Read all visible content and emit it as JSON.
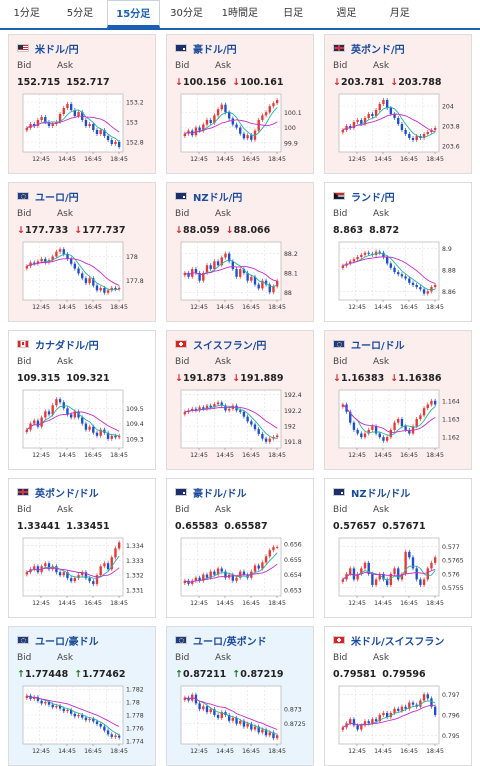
{
  "tabs": [
    {
      "label": "1分足",
      "active": false
    },
    {
      "label": "5分足",
      "active": false
    },
    {
      "label": "15分足",
      "active": true
    },
    {
      "label": "30分足",
      "active": false
    },
    {
      "label": "1時間足",
      "active": false
    },
    {
      "label": "日足",
      "active": false
    },
    {
      "label": "週足",
      "active": false
    },
    {
      "label": "月足",
      "active": false
    }
  ],
  "labels": {
    "bid": "Bid",
    "ask": "Ask"
  },
  "colors": {
    "up_candle": "#e53935",
    "down_candle": "#1e4fc9",
    "ma_short": "#2ab0a0",
    "ma_long": "#c430c8",
    "accent": "#1a5fb4",
    "down_card": "#fdeeee",
    "up_card": "#eaf4fc"
  },
  "cards": [
    {
      "pair": "米ドル/円",
      "flag": "us-flag-icon",
      "flag_code": "us",
      "trend": "down",
      "bid": "152.715",
      "ask": "152.717",
      "arrow": "",
      "chart_data": {
        "type": "candlestick",
        "x_labels": [
          "12:45",
          "14:45",
          "16:45",
          "18:45"
        ],
        "y_ticks": [
          "153.2",
          "153",
          "152.8"
        ],
        "ylim": [
          152.7,
          153.28
        ],
        "close": [
          152.94,
          152.98,
          152.96,
          153.02,
          153.05,
          153.0,
          152.96,
          152.98,
          153.0,
          153.08,
          153.14,
          153.18,
          153.12,
          153.06,
          153.1,
          153.02,
          152.96,
          152.98,
          152.92,
          152.88,
          152.92,
          152.86,
          152.82,
          152.78,
          152.8,
          152.75
        ]
      }
    },
    {
      "pair": "豪ドル/円",
      "flag": "au-flag-icon",
      "flag_code": "au",
      "trend": "down",
      "bid": "100.156",
      "ask": "100.161",
      "arrow": "↓",
      "chart_data": {
        "type": "candlestick",
        "x_labels": [
          "12:45",
          "14:45",
          "16:45",
          "18:45"
        ],
        "y_ticks": [
          "100.1",
          "100",
          "99.9"
        ],
        "ylim": [
          99.84,
          100.22
        ],
        "close": [
          99.96,
          99.98,
          99.95,
          100.0,
          99.98,
          100.02,
          100.05,
          100.03,
          100.08,
          100.12,
          100.15,
          100.1,
          100.06,
          100.02,
          100.0,
          99.96,
          99.93,
          99.95,
          99.92,
          99.98,
          100.05,
          100.08,
          100.1,
          100.14,
          100.16,
          100.18
        ]
      }
    },
    {
      "pair": "英ポンド/円",
      "flag": "uk-flag-icon",
      "flag_code": "uk",
      "trend": "down",
      "bid": "203.781",
      "ask": "203.788",
      "arrow": "↓",
      "chart_data": {
        "type": "candlestick",
        "x_labels": [
          "12:45",
          "14:45",
          "16:45",
          "18:45"
        ],
        "y_ticks": [
          "204",
          "203.8",
          "203.6"
        ],
        "ylim": [
          203.54,
          204.12
        ],
        "close": [
          203.76,
          203.8,
          203.78,
          203.84,
          203.86,
          203.82,
          203.88,
          203.92,
          203.9,
          203.96,
          204.02,
          204.06,
          203.98,
          203.92,
          203.88,
          203.82,
          203.76,
          203.72,
          203.68,
          203.66,
          203.7,
          203.68,
          203.72,
          203.74,
          203.76,
          203.78
        ]
      }
    },
    {
      "pair": "ユーロ/円",
      "flag": "eu-flag-icon",
      "flag_code": "eu",
      "trend": "down",
      "bid": "177.733",
      "ask": "177.737",
      "arrow": "↓",
      "chart_data": {
        "type": "candlestick",
        "x_labels": [
          "12:45",
          "14:45",
          "16:45",
          "18:45"
        ],
        "y_ticks": [
          "178",
          "177.8"
        ],
        "ylim": [
          177.64,
          178.12
        ],
        "close": [
          177.92,
          177.95,
          177.94,
          177.96,
          177.98,
          177.95,
          177.97,
          178.0,
          178.04,
          178.06,
          178.02,
          177.98,
          177.94,
          177.9,
          177.86,
          177.82,
          177.78,
          177.82,
          177.76,
          177.72,
          177.74,
          177.7,
          177.72,
          177.74,
          177.73,
          177.74
        ]
      }
    },
    {
      "pair": "NZドル/円",
      "flag": "nz-flag-icon",
      "flag_code": "nz",
      "trend": "down",
      "bid": "88.059",
      "ask": "88.066",
      "arrow": "↓",
      "chart_data": {
        "type": "candlestick",
        "x_labels": [
          "12:45",
          "14:45",
          "16:45",
          "18:45"
        ],
        "y_ticks": [
          "88.2",
          "88.1",
          "88"
        ],
        "ylim": [
          87.96,
          88.26
        ],
        "close": [
          88.1,
          88.08,
          88.12,
          88.1,
          88.06,
          88.1,
          88.14,
          88.12,
          88.16,
          88.14,
          88.18,
          88.2,
          88.16,
          88.12,
          88.08,
          88.12,
          88.1,
          88.06,
          88.08,
          88.04,
          88.02,
          88.06,
          88.04,
          88.0,
          88.03,
          88.06
        ]
      }
    },
    {
      "pair": "ランド/円",
      "flag": "za-flag-icon",
      "flag_code": "za",
      "trend": "neutral",
      "bid": "8.863",
      "ask": "8.872",
      "arrow": "",
      "chart_data": {
        "type": "candlestick",
        "x_labels": [
          "12:45",
          "14:45",
          "16:45",
          "18:45"
        ],
        "y_ticks": [
          "8.9",
          "8.88",
          "8.86"
        ],
        "ylim": [
          8.852,
          8.906
        ],
        "close": [
          8.884,
          8.886,
          8.888,
          8.89,
          8.892,
          8.894,
          8.896,
          8.895,
          8.894,
          8.897,
          8.896,
          8.892,
          8.886,
          8.882,
          8.878,
          8.876,
          8.874,
          8.872,
          8.868,
          8.866,
          8.864,
          8.862,
          8.858,
          8.86,
          8.864,
          8.866
        ]
      }
    },
    {
      "pair": "カナダドル/円",
      "flag": "ca-flag-icon",
      "flag_code": "ca",
      "trend": "neutral",
      "bid": "109.315",
      "ask": "109.321",
      "arrow": "",
      "chart_data": {
        "type": "candlestick",
        "x_labels": [
          "12:45",
          "14:45",
          "16:45",
          "18:45"
        ],
        "y_ticks": [
          "109.5",
          "109.4",
          "109.3"
        ],
        "ylim": [
          109.24,
          109.62
        ],
        "close": [
          109.36,
          109.4,
          109.42,
          109.38,
          109.44,
          109.48,
          109.46,
          109.52,
          109.56,
          109.54,
          109.5,
          109.46,
          109.44,
          109.48,
          109.44,
          109.4,
          109.36,
          109.38,
          109.34,
          109.32,
          109.36,
          109.34,
          109.3,
          109.32,
          109.31,
          109.32
        ]
      }
    },
    {
      "pair": "スイスフラン/円",
      "flag": "ch-flag-icon",
      "flag_code": "ch",
      "trend": "down",
      "bid": "191.873",
      "ask": "191.889",
      "arrow": "↓",
      "chart_data": {
        "type": "candlestick",
        "x_labels": [
          "12:45",
          "14:45",
          "16:45",
          "18:45"
        ],
        "y_ticks": [
          "192.4",
          "192.2",
          "192",
          "191.8"
        ],
        "ylim": [
          191.72,
          192.46
        ],
        "close": [
          192.18,
          192.2,
          192.22,
          192.2,
          192.24,
          192.22,
          192.26,
          192.24,
          192.28,
          192.3,
          192.26,
          192.2,
          192.22,
          192.26,
          192.2,
          192.18,
          192.12,
          192.06,
          192.02,
          191.96,
          191.9,
          191.84,
          191.8,
          191.84,
          191.86,
          191.88
        ]
      }
    },
    {
      "pair": "ユーロ/ドル",
      "flag": "eu-flag-icon",
      "flag_code": "eu",
      "trend": "down",
      "bid": "1.16383",
      "ask": "1.16386",
      "arrow": "↓",
      "chart_data": {
        "type": "candlestick",
        "x_labels": [
          "12:45",
          "14:45",
          "16:45",
          "18:45"
        ],
        "y_ticks": [
          "1.164",
          "1.163",
          "1.162"
        ],
        "ylim": [
          1.1614,
          1.1646
        ],
        "close": [
          1.1638,
          1.1634,
          1.1628,
          1.1624,
          1.1622,
          1.162,
          1.1622,
          1.1624,
          1.1626,
          1.1622,
          1.162,
          1.1618,
          1.162,
          1.1624,
          1.1628,
          1.163,
          1.1626,
          1.1624,
          1.1622,
          1.1626,
          1.163,
          1.1632,
          1.1636,
          1.1638,
          1.164,
          1.1638
        ]
      }
    },
    {
      "pair": "英ポンド/ドル",
      "flag": "uk-flag-icon",
      "flag_code": "uk",
      "trend": "neutral",
      "bid": "1.33441",
      "ask": "1.33451",
      "arrow": "",
      "chart_data": {
        "type": "candlestick",
        "x_labels": [
          "12:45",
          "14:45",
          "16:45",
          "18:45"
        ],
        "y_ticks": [
          "1.334",
          "1.333",
          "1.332",
          "1.331"
        ],
        "ylim": [
          1.3306,
          1.3345
        ],
        "close": [
          1.3322,
          1.3324,
          1.3326,
          1.3322,
          1.3326,
          1.3328,
          1.3324,
          1.3326,
          1.3322,
          1.332,
          1.3322,
          1.3318,
          1.3316,
          1.3318,
          1.332,
          1.3322,
          1.3318,
          1.3316,
          1.3314,
          1.332,
          1.3326,
          1.3328,
          1.3324,
          1.3332,
          1.3338,
          1.3342
        ]
      }
    },
    {
      "pair": "豪ドル/ドル",
      "flag": "au-flag-icon",
      "flag_code": "au",
      "trend": "neutral",
      "bid": "0.65583",
      "ask": "0.65587",
      "arrow": "",
      "chart_data": {
        "type": "candlestick",
        "x_labels": [
          "12:45",
          "14:45",
          "16:45",
          "18:45"
        ],
        "y_ticks": [
          "0.656",
          "0.655",
          "0.654",
          "0.653"
        ],
        "ylim": [
          0.6526,
          0.6564
        ],
        "close": [
          0.6536,
          0.6534,
          0.6536,
          0.6538,
          0.6536,
          0.654,
          0.6538,
          0.6542,
          0.654,
          0.6544,
          0.6542,
          0.6538,
          0.654,
          0.6536,
          0.6538,
          0.6542,
          0.654,
          0.6538,
          0.6542,
          0.6546,
          0.6544,
          0.6548,
          0.6552,
          0.6556,
          0.6558,
          0.6558
        ]
      }
    },
    {
      "pair": "NZドル/ドル",
      "flag": "nz-flag-icon",
      "flag_code": "nz",
      "trend": "neutral",
      "bid": "0.57657",
      "ask": "0.57671",
      "arrow": "",
      "chart_data": {
        "type": "candlestick",
        "x_labels": [
          "12:45",
          "14:45",
          "16:45",
          "18:45"
        ],
        "y_ticks": [
          "0.577",
          "0.5765",
          "0.576",
          "0.5755"
        ],
        "ylim": [
          0.5752,
          0.5773
        ],
        "close": [
          0.5758,
          0.576,
          0.5762,
          0.5758,
          0.576,
          0.5762,
          0.5764,
          0.576,
          0.5756,
          0.5758,
          0.576,
          0.5758,
          0.5756,
          0.576,
          0.5762,
          0.5758,
          0.576,
          0.5768,
          0.5766,
          0.5762,
          0.5758,
          0.5756,
          0.5758,
          0.5762,
          0.5764,
          0.5766
        ]
      }
    },
    {
      "pair": "ユーロ/豪ドル",
      "flag": "eu-flag-icon",
      "flag_code": "eu",
      "trend": "up",
      "bid": "1.77448",
      "ask": "1.77462",
      "arrow": "↑",
      "chart_data": {
        "type": "candlestick",
        "x_labels": [
          "12:45",
          "14:45",
          "16:45",
          "18:45"
        ],
        "y_ticks": [
          "1.782",
          "1.78",
          "1.778",
          "1.776",
          "1.774"
        ],
        "ylim": [
          1.7735,
          1.7825
        ],
        "close": [
          1.781,
          1.7805,
          1.7808,
          1.7802,
          1.7798,
          1.78,
          1.7796,
          1.7792,
          1.7794,
          1.779,
          1.7786,
          1.7788,
          1.7782,
          1.7778,
          1.778,
          1.7776,
          1.7772,
          1.7774,
          1.777,
          1.7766,
          1.7762,
          1.7756,
          1.775,
          1.7746,
          1.7748,
          1.7745
        ]
      }
    },
    {
      "pair": "ユーロ/英ポンド",
      "flag": "eu-flag-icon",
      "flag_code": "eu",
      "trend": "up",
      "bid": "0.87211",
      "ask": "0.87219",
      "arrow": "↑",
      "chart_data": {
        "type": "candlestick",
        "x_labels": [
          "12:45",
          "14:45",
          "16:45",
          "18:45"
        ],
        "y_ticks": [
          "0.873",
          "0.8725"
        ],
        "ylim": [
          0.8718,
          0.8738
        ],
        "close": [
          0.8734,
          0.8733,
          0.8735,
          0.8732,
          0.873,
          0.8731,
          0.8729,
          0.873,
          0.8728,
          0.8727,
          0.8729,
          0.8728,
          0.8726,
          0.8727,
          0.8725,
          0.8726,
          0.8724,
          0.8725,
          0.8723,
          0.8724,
          0.8722,
          0.8723,
          0.8721,
          0.8722,
          0.872,
          0.8721
        ]
      }
    },
    {
      "pair": "米ドル/スイスフラン",
      "flag": "us-ch-flag-icon",
      "flag_code": "ch",
      "trend": "neutral",
      "bid": "0.79581",
      "ask": "0.79596",
      "arrow": "",
      "chart_data": {
        "type": "candlestick",
        "x_labels": [
          "12:45",
          "14:45",
          "16:45",
          "18:45"
        ],
        "y_ticks": [
          "0.797",
          "0.796",
          "0.795"
        ],
        "ylim": [
          0.7946,
          0.7974
        ],
        "close": [
          0.7954,
          0.7956,
          0.7958,
          0.7955,
          0.7953,
          0.7955,
          0.7957,
          0.7956,
          0.7958,
          0.7957,
          0.796,
          0.7961,
          0.7959,
          0.7961,
          0.7963,
          0.7962,
          0.7964,
          0.7963,
          0.7966,
          0.7965,
          0.7964,
          0.7967,
          0.797,
          0.7968,
          0.7964,
          0.796
        ]
      }
    }
  ]
}
